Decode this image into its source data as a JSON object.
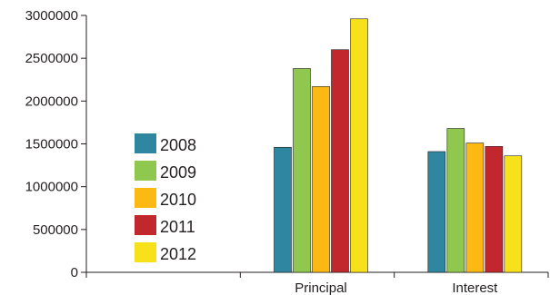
{
  "chart_data": {
    "type": "bar",
    "categories": [
      "",
      "Principal",
      "Interest"
    ],
    "series": [
      {
        "name": "2008",
        "color": "#2e86a0",
        "values": [
          0,
          1460000,
          1410000
        ]
      },
      {
        "name": "2009",
        "color": "#8fc74f",
        "values": [
          0,
          2380000,
          1680000
        ]
      },
      {
        "name": "2010",
        "color": "#fdb913",
        "values": [
          0,
          2170000,
          1510000
        ]
      },
      {
        "name": "2011",
        "color": "#c1272d",
        "values": [
          0,
          2600000,
          1470000
        ]
      },
      {
        "name": "2012",
        "color": "#f7e11b",
        "values": [
          0,
          2960000,
          1360000
        ]
      }
    ],
    "yticks": [
      "0",
      "500000",
      "1000000",
      "1500000",
      "2000000",
      "2500000",
      "3000000"
    ],
    "ylim": [
      0,
      3000000
    ],
    "grid": false,
    "legend_position": "left-inside",
    "title": "",
    "xlabel": "",
    "ylabel": ""
  }
}
